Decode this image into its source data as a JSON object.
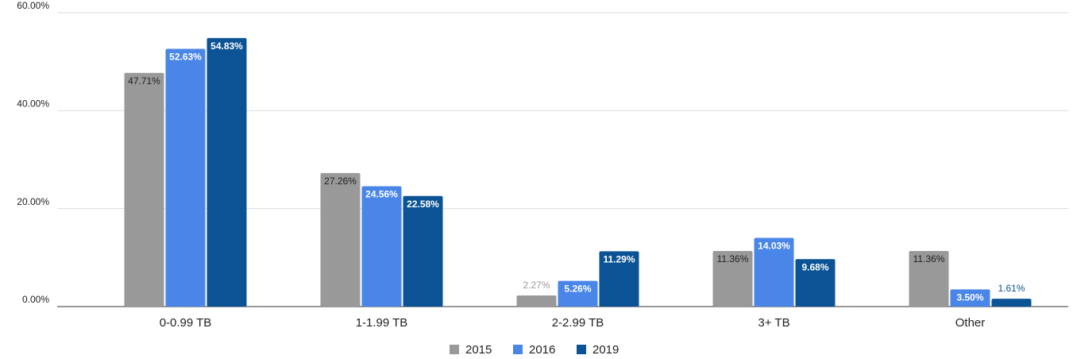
{
  "chart_data": {
    "type": "bar",
    "categories": [
      "0-0.99 TB",
      "1-1.99 TB",
      "2-2.99 TB",
      "3+ TB",
      "Other"
    ],
    "series": [
      {
        "name": "2015",
        "color": "#999999",
        "values": [
          47.71,
          27.26,
          2.27,
          11.36,
          11.36
        ],
        "value_labels": [
          "47.71%",
          "27.26%",
          "2.27%",
          "11.36%",
          "11.36%"
        ]
      },
      {
        "name": "2016",
        "color": "#4a86e8",
        "values": [
          52.63,
          24.56,
          5.26,
          14.03,
          3.5
        ],
        "value_labels": [
          "52.63%",
          "24.56%",
          "5.26%",
          "14.03%",
          "3.50%"
        ]
      },
      {
        "name": "2019",
        "color": "#0b5394",
        "values": [
          54.83,
          22.58,
          11.29,
          9.68,
          1.61
        ],
        "value_labels": [
          "54.83%",
          "22.58%",
          "11.29%",
          "9.68%",
          "1.61%"
        ]
      }
    ],
    "ylim": [
      0,
      60
    ],
    "yticks": [
      {
        "value": 0,
        "label": "0.00%"
      },
      {
        "value": 20,
        "label": "20.00%"
      },
      {
        "value": 40,
        "label": "40.00%"
      },
      {
        "value": 60,
        "label": "60.00%"
      }
    ],
    "grid": true,
    "legend": "bottom"
  }
}
